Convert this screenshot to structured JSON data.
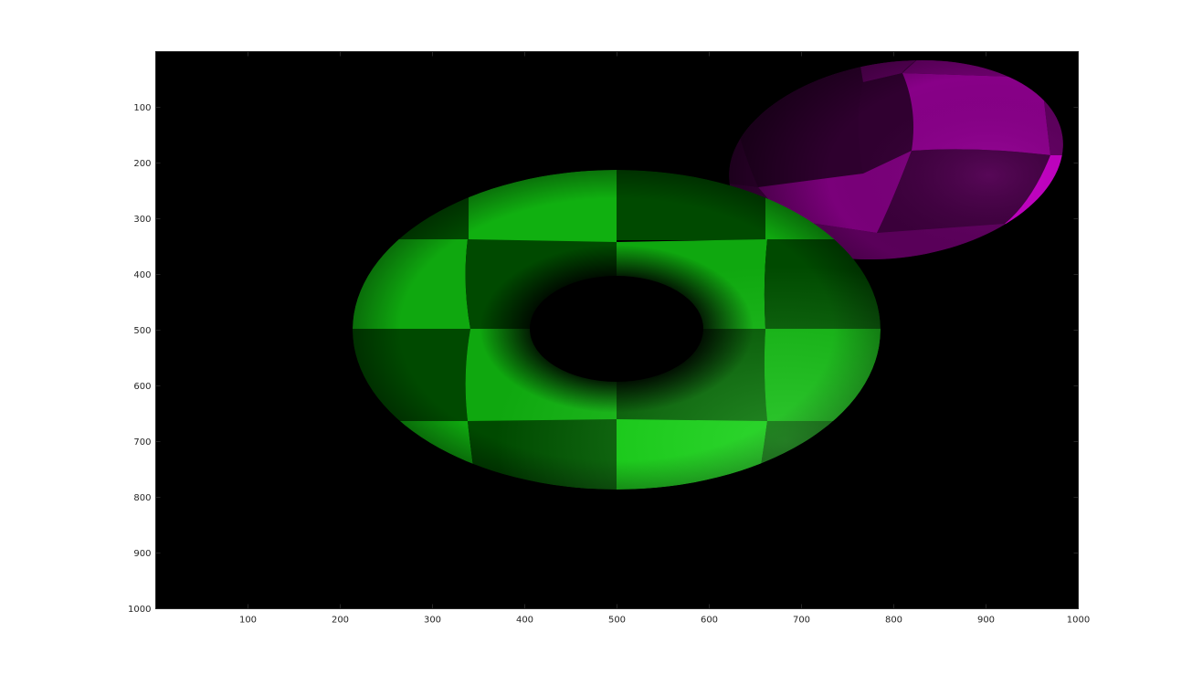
{
  "image": {
    "description_free": true,
    "background_color": "#000000",
    "figure_background": "#ffffff",
    "axis_color": "#262626"
  },
  "axes": {
    "x_range": [
      0,
      1000
    ],
    "y_range": [
      0,
      1000
    ],
    "y_direction": "reversed",
    "x_ticks": [
      {
        "value": 100,
        "label": "100"
      },
      {
        "value": 200,
        "label": "200"
      },
      {
        "value": 300,
        "label": "300"
      },
      {
        "value": 400,
        "label": "400"
      },
      {
        "value": 500,
        "label": "500"
      },
      {
        "value": 600,
        "label": "600"
      },
      {
        "value": 700,
        "label": "700"
      },
      {
        "value": 800,
        "label": "800"
      },
      {
        "value": 900,
        "label": "900"
      },
      {
        "value": 1000,
        "label": "1000"
      }
    ],
    "y_ticks": [
      {
        "value": 100,
        "label": "100"
      },
      {
        "value": 200,
        "label": "200"
      },
      {
        "value": 300,
        "label": "300"
      },
      {
        "value": 400,
        "label": "400"
      },
      {
        "value": 500,
        "label": "500"
      },
      {
        "value": 600,
        "label": "600"
      },
      {
        "value": 700,
        "label": "700"
      },
      {
        "value": 800,
        "label": "800"
      },
      {
        "value": 900,
        "label": "900"
      },
      {
        "value": 1000,
        "label": "1000"
      }
    ]
  },
  "objects": {
    "torus": {
      "light_color": "#10c010",
      "dark_color": "#004a00"
    },
    "ellipsoid": {
      "light_color": "#880088",
      "dark_color": "#2e002e"
    }
  }
}
